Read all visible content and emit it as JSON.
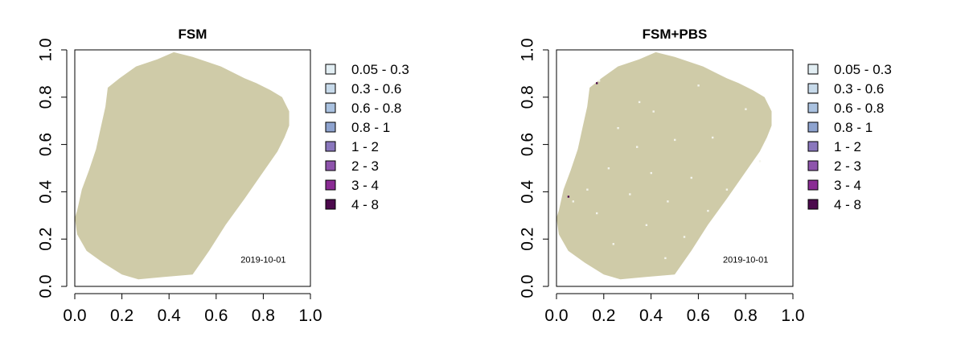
{
  "chart_data": [
    {
      "type": "heatmap",
      "title": "FSM",
      "annotation": "2019-10-01",
      "xlim": [
        0,
        1
      ],
      "ylim": [
        0,
        1
      ],
      "xticks": [
        "0.0",
        "0.2",
        "0.4",
        "0.6",
        "0.8",
        "1.0"
      ],
      "yticks": [
        "0.0",
        "0.2",
        "0.4",
        "0.6",
        "0.8",
        "1.0"
      ],
      "xlabel": "",
      "ylabel": "",
      "background_fill": "#cfcba8",
      "region_outline": [
        [
          0.27,
          0.03
        ],
        [
          0.38,
          0.04
        ],
        [
          0.5,
          0.05
        ],
        [
          0.57,
          0.15
        ],
        [
          0.64,
          0.26
        ],
        [
          0.72,
          0.37
        ],
        [
          0.79,
          0.47
        ],
        [
          0.86,
          0.57
        ],
        [
          0.89,
          0.63
        ],
        [
          0.91,
          0.68
        ],
        [
          0.91,
          0.74
        ],
        [
          0.88,
          0.8
        ],
        [
          0.83,
          0.83
        ],
        [
          0.77,
          0.86
        ],
        [
          0.72,
          0.88
        ],
        [
          0.62,
          0.93
        ],
        [
          0.5,
          0.97
        ],
        [
          0.42,
          0.99
        ],
        [
          0.35,
          0.96
        ],
        [
          0.26,
          0.93
        ],
        [
          0.19,
          0.88
        ],
        [
          0.14,
          0.84
        ],
        [
          0.13,
          0.76
        ],
        [
          0.11,
          0.67
        ],
        [
          0.09,
          0.58
        ],
        [
          0.06,
          0.49
        ],
        [
          0.03,
          0.41
        ],
        [
          0.01,
          0.32
        ],
        [
          0.0,
          0.29
        ],
        [
          0.01,
          0.22
        ],
        [
          0.05,
          0.15
        ],
        [
          0.12,
          0.1
        ],
        [
          0.2,
          0.05
        ]
      ],
      "legend": {
        "position": "right",
        "entries": [
          {
            "label": "0.05 - 0.3",
            "color": "#e2eef3"
          },
          {
            "label": "0.3 - 0.6",
            "color": "#c7daea"
          },
          {
            "label": "0.6 - 0.8",
            "color": "#aac2e0"
          },
          {
            "label": "0.8 - 1",
            "color": "#8ea3cf"
          },
          {
            "label": "1 - 2",
            "color": "#8a77bd"
          },
          {
            "label": "2 - 3",
            "color": "#8e54ac"
          },
          {
            "label": "3 - 4",
            "color": "#8a2c94"
          },
          {
            "label": "4 - 8",
            "color": "#4c0a4d"
          }
        ]
      },
      "speckles": []
    },
    {
      "type": "heatmap",
      "title": "FSM+PBS",
      "annotation": "2019-10-01",
      "xlim": [
        0,
        1
      ],
      "ylim": [
        0,
        1
      ],
      "xticks": [
        "0.0",
        "0.2",
        "0.4",
        "0.6",
        "0.8",
        "1.0"
      ],
      "yticks": [
        "0.0",
        "0.2",
        "0.4",
        "0.6",
        "0.8",
        "1.0"
      ],
      "xlabel": "",
      "ylabel": "",
      "background_fill": "#cfcba8",
      "region_outline": [
        [
          0.27,
          0.03
        ],
        [
          0.38,
          0.04
        ],
        [
          0.5,
          0.05
        ],
        [
          0.57,
          0.15
        ],
        [
          0.64,
          0.26
        ],
        [
          0.72,
          0.37
        ],
        [
          0.79,
          0.47
        ],
        [
          0.86,
          0.57
        ],
        [
          0.89,
          0.63
        ],
        [
          0.91,
          0.68
        ],
        [
          0.91,
          0.74
        ],
        [
          0.88,
          0.8
        ],
        [
          0.83,
          0.83
        ],
        [
          0.77,
          0.86
        ],
        [
          0.72,
          0.88
        ],
        [
          0.62,
          0.93
        ],
        [
          0.5,
          0.97
        ],
        [
          0.42,
          0.99
        ],
        [
          0.35,
          0.96
        ],
        [
          0.26,
          0.93
        ],
        [
          0.19,
          0.88
        ],
        [
          0.14,
          0.84
        ],
        [
          0.13,
          0.76
        ],
        [
          0.11,
          0.67
        ],
        [
          0.09,
          0.58
        ],
        [
          0.06,
          0.49
        ],
        [
          0.03,
          0.41
        ],
        [
          0.01,
          0.32
        ],
        [
          0.0,
          0.29
        ],
        [
          0.01,
          0.22
        ],
        [
          0.05,
          0.15
        ],
        [
          0.12,
          0.1
        ],
        [
          0.2,
          0.05
        ]
      ],
      "legend": {
        "position": "right",
        "entries": [
          {
            "label": "0.05 - 0.3",
            "color": "#e2eef3"
          },
          {
            "label": "0.3 - 0.6",
            "color": "#c7daea"
          },
          {
            "label": "0.6 - 0.8",
            "color": "#aac2e0"
          },
          {
            "label": "0.8 - 1",
            "color": "#8ea3cf"
          },
          {
            "label": "1 - 2",
            "color": "#8a77bd"
          },
          {
            "label": "2 - 3",
            "color": "#8e54ac"
          },
          {
            "label": "3 - 4",
            "color": "#8a2c94"
          },
          {
            "label": "4 - 8",
            "color": "#4c0a4d"
          }
        ]
      },
      "speckles": [
        {
          "x": 0.18,
          "y": 0.87,
          "v": "0.05 - 0.3"
        },
        {
          "x": 0.35,
          "y": 0.78,
          "v": "0.05 - 0.3"
        },
        {
          "x": 0.41,
          "y": 0.74,
          "v": "0.05 - 0.3"
        },
        {
          "x": 0.26,
          "y": 0.67,
          "v": "0.05 - 0.3"
        },
        {
          "x": 0.5,
          "y": 0.62,
          "v": "0.05 - 0.3"
        },
        {
          "x": 0.34,
          "y": 0.59,
          "v": "0.05 - 0.3"
        },
        {
          "x": 0.66,
          "y": 0.63,
          "v": "0.05 - 0.3"
        },
        {
          "x": 0.22,
          "y": 0.5,
          "v": "0.05 - 0.3"
        },
        {
          "x": 0.4,
          "y": 0.48,
          "v": "0.05 - 0.3"
        },
        {
          "x": 0.57,
          "y": 0.46,
          "v": "0.05 - 0.3"
        },
        {
          "x": 0.31,
          "y": 0.39,
          "v": "0.05 - 0.3"
        },
        {
          "x": 0.13,
          "y": 0.41,
          "v": "0.05 - 0.3"
        },
        {
          "x": 0.47,
          "y": 0.36,
          "v": "0.05 - 0.3"
        },
        {
          "x": 0.64,
          "y": 0.32,
          "v": "0.05 - 0.3"
        },
        {
          "x": 0.17,
          "y": 0.31,
          "v": "0.05 - 0.3"
        },
        {
          "x": 0.38,
          "y": 0.26,
          "v": "0.05 - 0.3"
        },
        {
          "x": 0.54,
          "y": 0.21,
          "v": "0.05 - 0.3"
        },
        {
          "x": 0.24,
          "y": 0.18,
          "v": "0.05 - 0.3"
        },
        {
          "x": 0.46,
          "y": 0.12,
          "v": "0.05 - 0.3"
        },
        {
          "x": 0.8,
          "y": 0.75,
          "v": "0.05 - 0.3"
        },
        {
          "x": 0.72,
          "y": 0.41,
          "v": "0.05 - 0.3"
        },
        {
          "x": 0.6,
          "y": 0.85,
          "v": "0.05 - 0.3"
        },
        {
          "x": 0.07,
          "y": 0.36,
          "v": "0.05 - 0.3"
        },
        {
          "x": 0.86,
          "y": 0.53,
          "v": "0.05 - 0.3"
        },
        {
          "x": 0.05,
          "y": 0.38,
          "v": "4 - 8"
        },
        {
          "x": 0.17,
          "y": 0.86,
          "v": "4 - 8"
        }
      ]
    }
  ]
}
